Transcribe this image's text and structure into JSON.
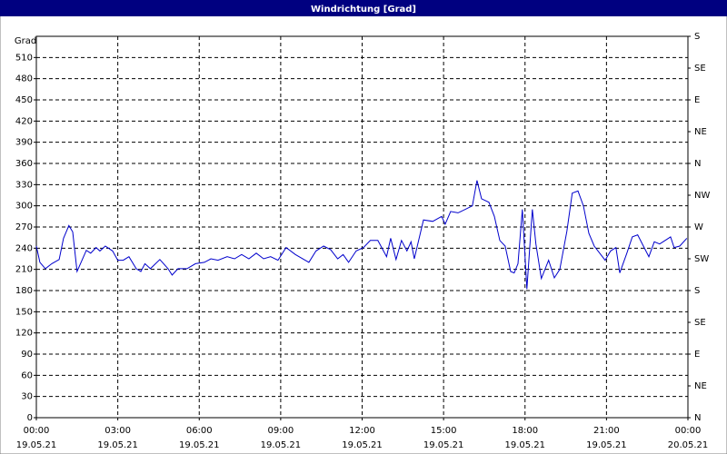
{
  "chart_data": {
    "type": "line",
    "title": "Windrichtung [Grad]",
    "y_label": "Grad",
    "x": [
      0,
      0.13,
      0.33,
      0.57,
      0.84,
      1.0,
      1.2,
      1.34,
      1.5,
      1.84,
      2.0,
      2.2,
      2.34,
      2.54,
      2.81,
      3.0,
      3.2,
      3.41,
      3.68,
      3.85,
      4.0,
      4.2,
      4.55,
      4.85,
      5.0,
      5.22,
      5.55,
      5.86,
      6.19,
      6.43,
      6.69,
      7.03,
      7.3,
      7.56,
      7.83,
      8.1,
      8.37,
      8.63,
      8.9,
      9.2,
      9.54,
      10.04,
      10.3,
      10.58,
      10.84,
      11.1,
      11.3,
      11.5,
      11.78,
      12.05,
      12.3,
      12.58,
      12.9,
      13.05,
      13.25,
      13.45,
      13.65,
      13.8,
      13.92,
      14.26,
      14.6,
      14.93,
      15.06,
      15.26,
      15.53,
      15.8,
      16.06,
      16.23,
      16.4,
      16.67,
      16.87,
      17.07,
      17.27,
      17.47,
      17.6,
      17.74,
      17.9,
      18.07,
      18.27,
      18.4,
      18.6,
      18.87,
      19.08,
      19.28,
      19.54,
      19.74,
      19.95,
      20.15,
      20.35,
      20.55,
      20.75,
      20.95,
      21.15,
      21.35,
      21.49,
      21.75,
      21.95,
      22.15,
      22.36,
      22.56,
      22.76,
      22.96,
      23.16,
      23.36,
      23.49,
      23.7,
      23.96
    ],
    "values": [
      243,
      220,
      211,
      218,
      224,
      254,
      272,
      263,
      207,
      237,
      233,
      241,
      236,
      243,
      236,
      223,
      223,
      228,
      211,
      207,
      218,
      211,
      224,
      211,
      202,
      211,
      211,
      218,
      220,
      225,
      223,
      228,
      225,
      231,
      225,
      233,
      225,
      228,
      223,
      241,
      231,
      220,
      236,
      243,
      238,
      225,
      231,
      220,
      236,
      241,
      251,
      251,
      228,
      254,
      224,
      251,
      236,
      249,
      225,
      280,
      278,
      285,
      274,
      292,
      290,
      295,
      300,
      336,
      310,
      305,
      285,
      251,
      243,
      207,
      205,
      218,
      295,
      182,
      295,
      246,
      197,
      223,
      198,
      210,
      264,
      318,
      321,
      300,
      261,
      243,
      233,
      223,
      236,
      241,
      205,
      233,
      256,
      259,
      243,
      228,
      249,
      246,
      251,
      256,
      241,
      243,
      254
    ],
    "color": "#0000cc",
    "xlim": [
      0,
      24
    ],
    "xticks": [
      {
        "value": 0,
        "label": "00:00"
      },
      {
        "value": 3,
        "label": "03:00"
      },
      {
        "value": 6,
        "label": "06:00"
      },
      {
        "value": 9,
        "label": "09:00"
      },
      {
        "value": 12,
        "label": "12:00"
      },
      {
        "value": 15,
        "label": "15:00"
      },
      {
        "value": 18,
        "label": "18:00"
      },
      {
        "value": 21,
        "label": "21:00"
      },
      {
        "value": 24,
        "label": "00:00"
      }
    ],
    "xtick_dates": [
      "19.05.21",
      "19.05.21",
      "19.05.21",
      "19.05.21",
      "19.05.21",
      "19.05.21",
      "19.05.21",
      "19.05.21",
      "20.05.21"
    ],
    "ylim": [
      0,
      540
    ],
    "yticks": [
      0,
      30,
      60,
      90,
      120,
      150,
      180,
      210,
      240,
      270,
      300,
      330,
      360,
      390,
      420,
      450,
      480,
      510
    ],
    "y2lim": [
      0,
      540
    ],
    "y2ticks": [
      {
        "value": 0,
        "label": "N"
      },
      {
        "value": 45,
        "label": "NE"
      },
      {
        "value": 90,
        "label": "E"
      },
      {
        "value": 135,
        "label": "SE"
      },
      {
        "value": 180,
        "label": "S"
      },
      {
        "value": 225,
        "label": "SW"
      },
      {
        "value": 270,
        "label": "W"
      },
      {
        "value": 315,
        "label": "NW"
      },
      {
        "value": 360,
        "label": "N"
      },
      {
        "value": 405,
        "label": "NE"
      },
      {
        "value": 450,
        "label": "E"
      },
      {
        "value": 495,
        "label": "SE"
      },
      {
        "value": 540,
        "label": "S"
      }
    ],
    "grid": true
  }
}
